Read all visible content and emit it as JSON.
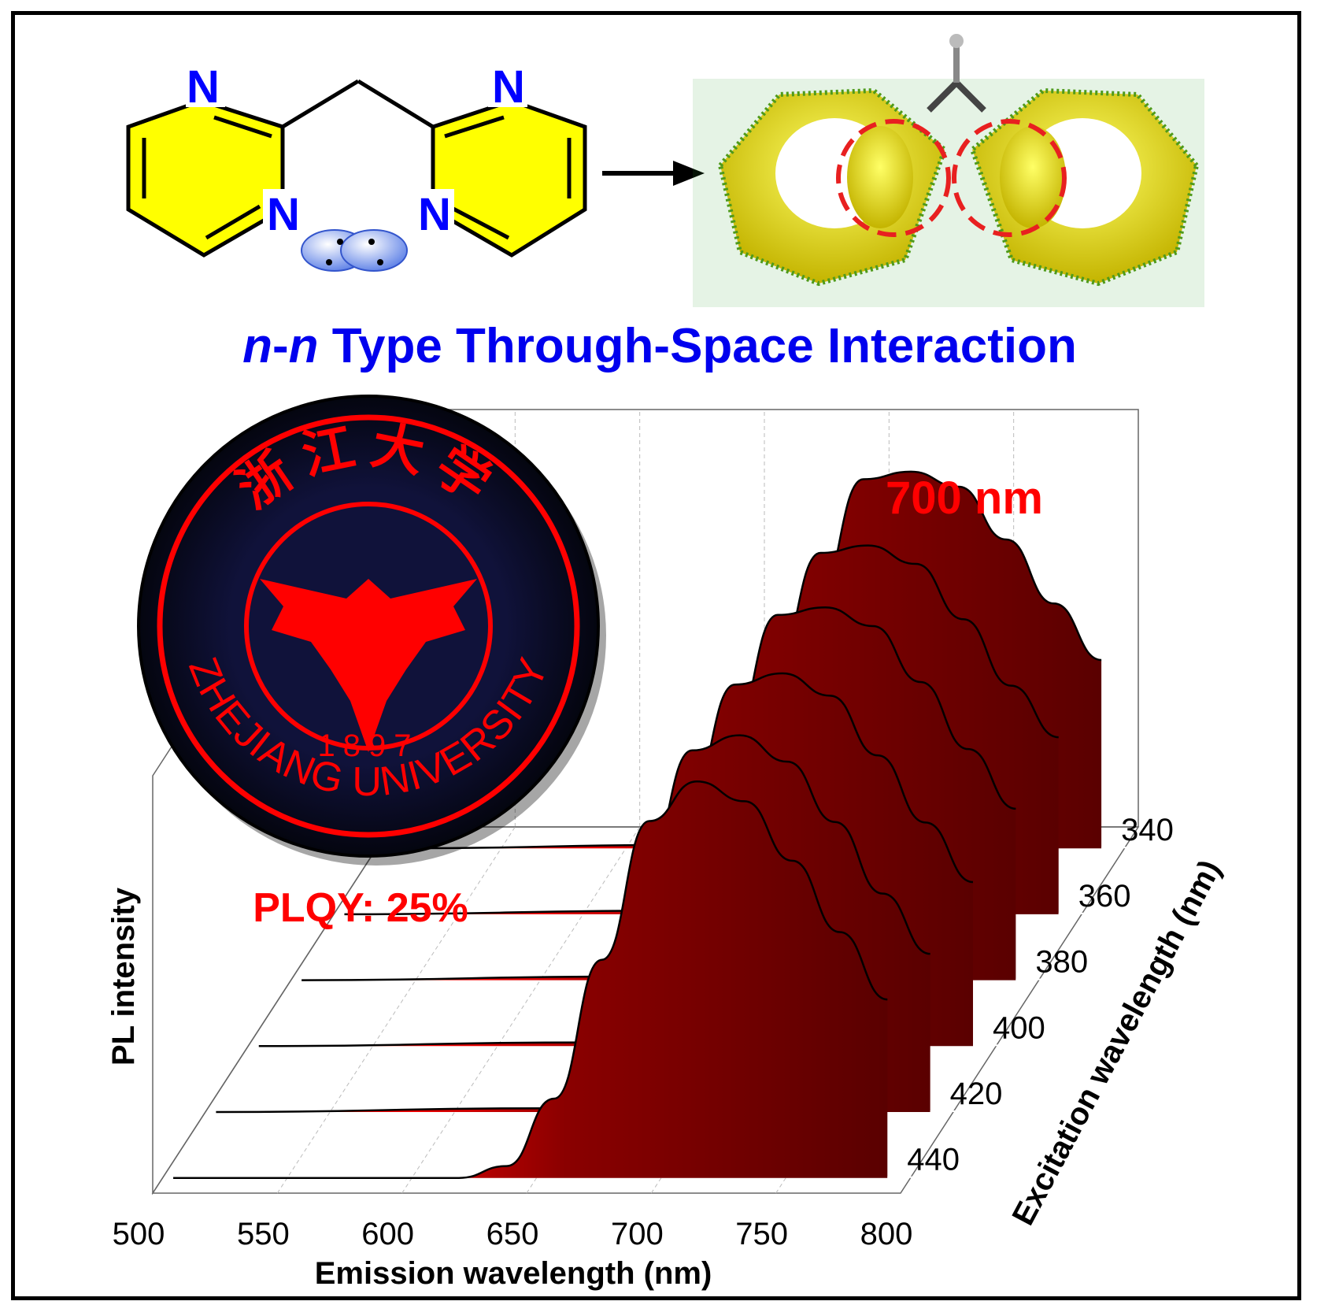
{
  "molecule": {
    "atom_labels": [
      "N",
      "N",
      "N",
      "N"
    ],
    "label_color": "#0000ff",
    "ring_fill": "#ffff00"
  },
  "headline": {
    "prefix_italic": "n",
    "dash": "-",
    "second_italic": "n",
    "rest": " Type Through-Space Interaction",
    "color": "#0000ee"
  },
  "logo": {
    "chinese": "浙江大学",
    "english": "ZHEJIANG UNIVERSITY",
    "year": "1897",
    "color": "#ff0000",
    "background": "#06081f"
  },
  "annotations": {
    "peak": "700 nm",
    "plqy": "PLQY: 25%",
    "color": "#ff0000"
  },
  "chart_data": {
    "type": "area",
    "xlabel": "Emission wavelength (nm)",
    "ylabel": "PL intensity",
    "zlabel": "Excitation wavelength (nm)",
    "xlim": [
      500,
      800
    ],
    "x_ticks": [
      "500",
      "550",
      "600",
      "650",
      "700",
      "750",
      "800"
    ],
    "z_ticks": [
      "340",
      "360",
      "380",
      "400",
      "420",
      "440"
    ],
    "grid": true,
    "series": [
      {
        "name": "340",
        "x": [
          500,
          640,
          660,
          680,
          700,
          720,
          740,
          760,
          780,
          800
        ],
        "y": [
          0.0,
          0.01,
          0.25,
          0.65,
          0.98,
          1.0,
          0.96,
          0.82,
          0.65,
          0.5
        ]
      },
      {
        "name": "360",
        "x": [
          500,
          640,
          660,
          680,
          700,
          720,
          740,
          760,
          780,
          800
        ],
        "y": [
          0.0,
          0.01,
          0.25,
          0.65,
          0.98,
          1.0,
          0.95,
          0.8,
          0.62,
          0.48
        ]
      },
      {
        "name": "380",
        "x": [
          500,
          640,
          660,
          680,
          700,
          720,
          740,
          760,
          780,
          800
        ],
        "y": [
          0.0,
          0.01,
          0.25,
          0.65,
          0.98,
          1.0,
          0.95,
          0.8,
          0.62,
          0.46
        ]
      },
      {
        "name": "400",
        "x": [
          500,
          640,
          660,
          680,
          700,
          720,
          740,
          760,
          780,
          800
        ],
        "y": [
          0.0,
          0.01,
          0.25,
          0.65,
          0.97,
          1.0,
          0.94,
          0.78,
          0.6,
          0.44
        ]
      },
      {
        "name": "420",
        "x": [
          500,
          640,
          660,
          680,
          700,
          720,
          740,
          760,
          780,
          800
        ],
        "y": [
          0.0,
          0.01,
          0.25,
          0.64,
          0.96,
          1.0,
          0.93,
          0.77,
          0.58,
          0.42
        ]
      },
      {
        "name": "440",
        "x": [
          500,
          620,
          640,
          660,
          680,
          700,
          720,
          740,
          760,
          780,
          800
        ],
        "y": [
          0.0,
          0.0,
          0.03,
          0.2,
          0.55,
          0.9,
          1.0,
          0.95,
          0.8,
          0.62,
          0.45
        ]
      }
    ],
    "peak_scale": [
      0.95,
      0.93,
      0.94,
      0.94,
      0.95,
      1.0
    ]
  }
}
